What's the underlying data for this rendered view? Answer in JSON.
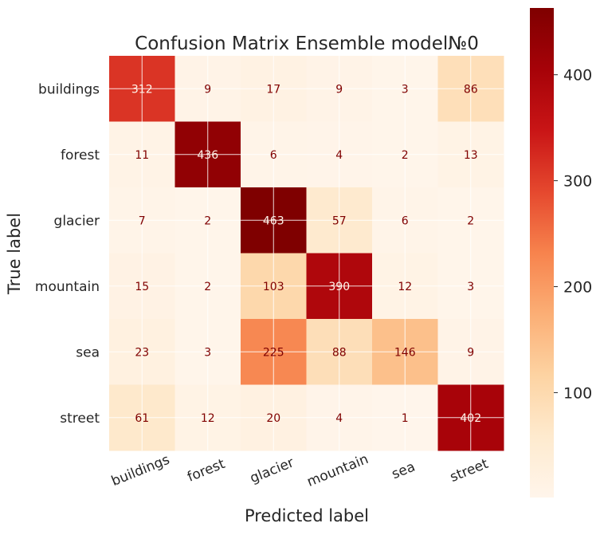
{
  "chart_data": {
    "type": "heatmap",
    "title": "Confusion Matrix Ensemble model№0",
    "xlabel": "Predicted label",
    "ylabel": "True label",
    "x_categories": [
      "buildings",
      "forest",
      "glacier",
      "mountain",
      "sea",
      "street"
    ],
    "y_categories": [
      "buildings",
      "forest",
      "glacier",
      "mountain",
      "sea",
      "street"
    ],
    "matrix": [
      [
        312,
        9,
        17,
        9,
        3,
        86
      ],
      [
        11,
        436,
        6,
        4,
        2,
        13
      ],
      [
        7,
        2,
        463,
        57,
        6,
        2
      ],
      [
        15,
        2,
        103,
        390,
        12,
        3
      ],
      [
        23,
        3,
        225,
        88,
        146,
        9
      ],
      [
        61,
        12,
        20,
        4,
        1,
        402
      ]
    ],
    "colormap": "OrRd",
    "color_range": [
      1,
      463
    ],
    "colorbar_ticks": [
      100,
      200,
      300,
      400
    ],
    "grid": true,
    "x_tick_rotation": "-25deg"
  }
}
